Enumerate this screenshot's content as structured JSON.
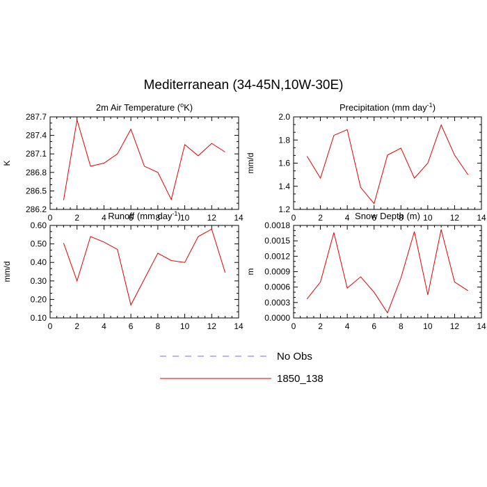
{
  "title": "Mediterranean (34-45N,10W-30E)",
  "legend": [
    {
      "label": "No Obs",
      "color": "#6e6ef0",
      "dash": true
    },
    {
      "label": "1850_138",
      "color": "#e00000",
      "dash": false
    }
  ],
  "chart_data": [
    {
      "type": "line",
      "title": "2m Air Temperature (°K)",
      "ylabel": "K",
      "xlim": [
        0,
        14
      ],
      "ylim": [
        286.2,
        287.7
      ],
      "xticks": [
        0,
        2,
        4,
        6,
        8,
        10,
        12,
        14
      ],
      "yticks": [
        "286.2",
        "286.5",
        "286.8",
        "287.1",
        "287.4",
        "287.7"
      ],
      "series": [
        {
          "color": "#e00000",
          "x": [
            1,
            2,
            3,
            4,
            5,
            6,
            7,
            8,
            9,
            10,
            11,
            12,
            13
          ],
          "y": [
            286.35,
            287.65,
            286.9,
            286.95,
            287.1,
            287.5,
            286.9,
            286.8,
            286.36,
            287.25,
            287.07,
            287.27,
            287.13
          ]
        }
      ]
    },
    {
      "type": "line",
      "title": "Precipitation (mm day-1)",
      "ylabel": "mm/d",
      "xlim": [
        0,
        14
      ],
      "ylim": [
        1.2,
        2.0
      ],
      "xticks": [
        0,
        2,
        4,
        6,
        8,
        10,
        12,
        14
      ],
      "yticks": [
        "1.2",
        "1.4",
        "1.6",
        "1.8",
        "2.0"
      ],
      "series": [
        {
          "color": "#e00000",
          "x": [
            1,
            2,
            3,
            4,
            5,
            6,
            7,
            8,
            9,
            10,
            11,
            12,
            13
          ],
          "y": [
            1.66,
            1.47,
            1.84,
            1.89,
            1.39,
            1.25,
            1.67,
            1.73,
            1.47,
            1.6,
            1.93,
            1.67,
            1.5
          ]
        }
      ]
    },
    {
      "type": "line",
      "title": "Runoff (mm day-1)",
      "ylabel": "mm/d",
      "xlim": [
        0,
        14
      ],
      "ylim": [
        0.1,
        0.6
      ],
      "xticks": [
        0,
        2,
        4,
        6,
        8,
        10,
        12,
        14
      ],
      "yticks": [
        "0.10",
        "0.20",
        "0.30",
        "0.40",
        "0.50",
        "0.60"
      ],
      "series": [
        {
          "color": "#e00000",
          "x": [
            1,
            2,
            3,
            4,
            5,
            6,
            7,
            8,
            9,
            10,
            11,
            12,
            13
          ],
          "y": [
            0.505,
            0.3,
            0.54,
            0.51,
            0.47,
            0.17,
            0.31,
            0.45,
            0.41,
            0.4,
            0.54,
            0.58,
            0.345
          ]
        }
      ]
    },
    {
      "type": "line",
      "title": "Snow Depth (m)",
      "ylabel": "m",
      "xlim": [
        0,
        14
      ],
      "ylim": [
        0.0,
        0.0018
      ],
      "xticks": [
        0,
        2,
        4,
        6,
        8,
        10,
        12,
        14
      ],
      "yticks": [
        "0.0000",
        "0.0003",
        "0.0006",
        "0.0009",
        "0.0012",
        "0.0015",
        "0.0018"
      ],
      "series": [
        {
          "color": "#e00000",
          "x": [
            1,
            2,
            3,
            4,
            5,
            6,
            7,
            8,
            9,
            10,
            11,
            12,
            13
          ],
          "y": [
            0.00037,
            0.0007,
            0.00166,
            0.00058,
            0.0008,
            0.0005,
            0.0001,
            0.00078,
            0.00168,
            0.00045,
            0.00172,
            0.0007,
            0.00053
          ]
        }
      ]
    }
  ]
}
